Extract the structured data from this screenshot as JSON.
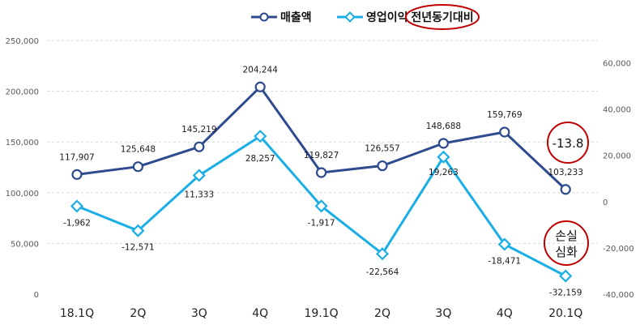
{
  "chart_data": {
    "type": "line",
    "categories": [
      "18.1Q",
      "2Q",
      "3Q",
      "4Q",
      "19.1Q",
      "2Q",
      "3Q",
      "4Q",
      "20.1Q"
    ],
    "series": [
      {
        "name": "매출액",
        "axis": "left",
        "color": "#2f4b8f",
        "marker": "circle",
        "values": [
          117907,
          125648,
          145219,
          204244,
          119827,
          126557,
          148688,
          159769,
          103233
        ],
        "labels": [
          "117,907",
          "125,648",
          "145,219",
          "204,244",
          "119,827",
          "126,557",
          "148,688",
          "159,769",
          "103,233"
        ]
      },
      {
        "name": "영업이익",
        "axis": "right",
        "color": "#1aaee6",
        "marker": "diamond",
        "values": [
          -1962,
          -12571,
          11333,
          28257,
          -1917,
          -22564,
          19263,
          -18471,
          -32159
        ],
        "labels": [
          "-1,962",
          "-12,571",
          "11,333",
          "28,257",
          "-1,917",
          "-22,564",
          "19,263",
          "-18,471",
          "-32,159"
        ]
      }
    ],
    "y_left": {
      "ylim": [
        0,
        250000
      ],
      "ticks": [
        0,
        50000,
        100000,
        150000,
        200000,
        250000
      ],
      "tick_labels": [
        "0",
        "50,000",
        "100,000",
        "150,000",
        "200,000",
        "250,000"
      ]
    },
    "y_right": {
      "ylim": [
        -40000,
        60000
      ],
      "ticks": [
        -40000,
        -20000,
        0,
        20000,
        40000,
        60000
      ],
      "tick_labels": [
        "-40,000",
        "-20,000",
        "0",
        "20,000",
        "40,000",
        "60,000"
      ]
    },
    "grid": true,
    "legend": {
      "placement": "top-center",
      "items": [
        "매출액",
        "영업이익"
      ],
      "extra_label": "전년동기대비"
    },
    "annotations": [
      {
        "text": "-13.8",
        "lines": [
          "-13.8"
        ]
      },
      {
        "text": "손실 심화",
        "lines": [
          "손실",
          "심화"
        ]
      }
    ],
    "colors": {
      "annotation_ring": "#c00000",
      "grid": "#d9d9d9"
    }
  }
}
